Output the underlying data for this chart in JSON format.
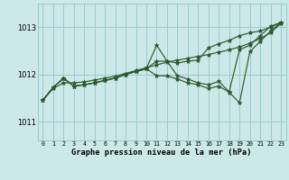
{
  "title": "Graphe pression niveau de la mer (hPa)",
  "bg_color": "#cce8e8",
  "grid_color": "#99cccc",
  "line_color": "#2d5a2d",
  "x_labels": [
    "0",
    "1",
    "2",
    "3",
    "4",
    "5",
    "6",
    "7",
    "8",
    "9",
    "10",
    "11",
    "12",
    "13",
    "14",
    "15",
    "16",
    "17",
    "18",
    "19",
    "20",
    "21",
    "22",
    "23"
  ],
  "yticks": [
    1011,
    1012,
    1013
  ],
  "ylim": [
    1010.6,
    1013.5
  ],
  "xlim": [
    -0.5,
    23.5
  ],
  "series1_smooth": [
    1011.45,
    1011.7,
    1011.82,
    1011.82,
    1011.84,
    1011.88,
    1011.92,
    1011.96,
    1012.02,
    1012.08,
    1012.14,
    1012.2,
    1012.26,
    1012.3,
    1012.34,
    1012.38,
    1012.42,
    1012.47,
    1012.52,
    1012.58,
    1012.66,
    1012.76,
    1012.88,
    1013.08
  ],
  "series2_zigzag": [
    1011.45,
    1011.72,
    1011.92,
    1011.75,
    1011.78,
    1011.82,
    1011.87,
    1011.92,
    1012.0,
    1012.06,
    1012.12,
    1012.62,
    1012.28,
    1011.97,
    1011.9,
    1011.82,
    1011.78,
    1011.85,
    1011.63,
    1012.52,
    1012.62,
    1012.82,
    1013.02,
    1013.1
  ],
  "series3_low": [
    1011.45,
    1011.72,
    1011.92,
    1011.75,
    1011.78,
    1011.82,
    1011.87,
    1011.92,
    1012.0,
    1012.06,
    1012.12,
    1011.97,
    1011.97,
    1011.9,
    1011.82,
    1011.78,
    1011.7,
    1011.75,
    1011.62,
    1011.4,
    1012.48,
    1012.7,
    1012.92,
    1013.1
  ],
  "series4_upper": [
    1011.45,
    1011.72,
    1011.92,
    1011.75,
    1011.78,
    1011.82,
    1011.87,
    1011.92,
    1012.0,
    1012.06,
    1012.12,
    1012.28,
    1012.28,
    1012.24,
    1012.28,
    1012.3,
    1012.56,
    1012.65,
    1012.72,
    1012.82,
    1012.88,
    1012.92,
    1013.0,
    1013.1
  ]
}
